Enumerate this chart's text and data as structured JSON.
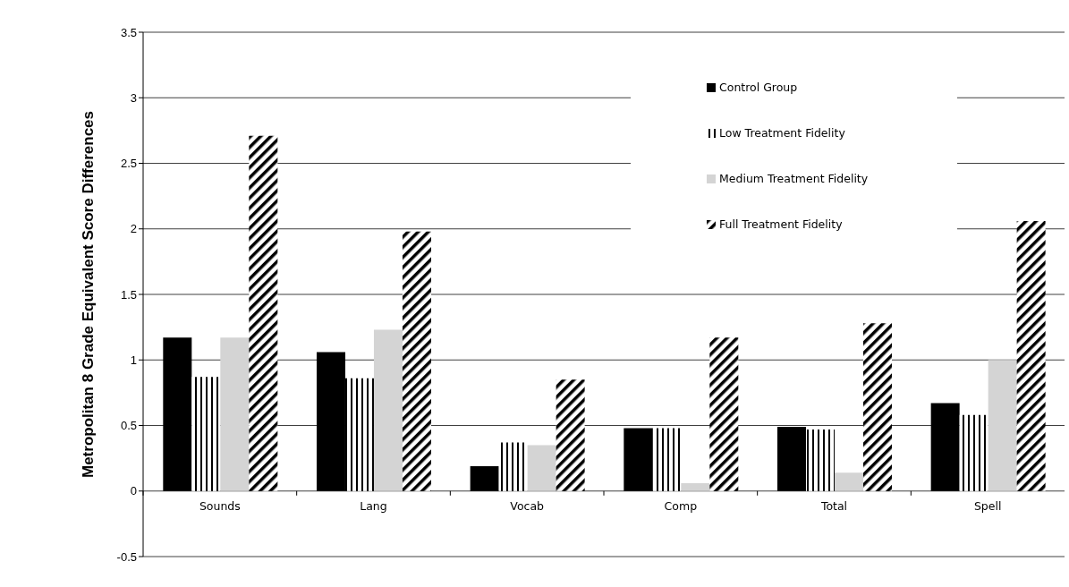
{
  "chart_data": {
    "type": "bar",
    "ylabel": "Metropolitan 8 Grade Equivalent Score Differences",
    "categories": [
      "Sounds",
      "Lang",
      "Vocab",
      "Comp",
      "Total",
      "Spell"
    ],
    "series": [
      {
        "name": "Control Group",
        "color": "#000000",
        "values": [
          1.17,
          1.06,
          0.19,
          0.48,
          0.49,
          0.67
        ]
      },
      {
        "name": "Low Treatment Fidelity",
        "color": "#000000",
        "values": [
          0.87,
          0.86,
          0.37,
          0.48,
          0.47,
          0.58
        ]
      },
      {
        "name": "Medium Treatment Fidelity",
        "color": "#d4d4d4",
        "values": [
          1.17,
          1.23,
          0.35,
          0.06,
          0.14,
          1.0
        ]
      },
      {
        "name": "Full Treatment Fidelity",
        "color": "#000000",
        "values": [
          2.71,
          1.98,
          0.85,
          1.17,
          1.28,
          2.06
        ]
      }
    ],
    "ylim": [
      -0.5,
      3.5
    ],
    "yticks": [
      -0.5,
      0,
      0.5,
      1,
      1.5,
      2,
      2.5,
      3,
      3.5
    ],
    "grid": "y",
    "legend": "top right"
  }
}
